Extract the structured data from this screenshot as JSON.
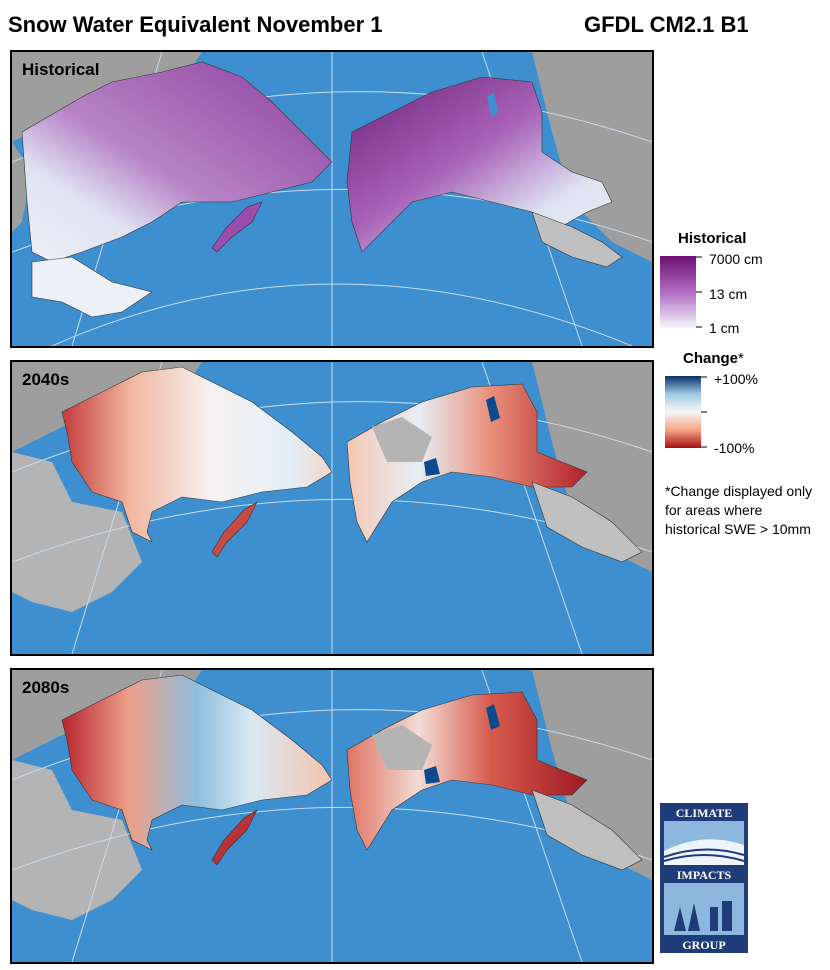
{
  "header": {
    "title": "Snow Water Equivalent November 1",
    "model": "GFDL CM2.1 B1"
  },
  "panels": [
    {
      "label": "Historical",
      "mode": "historical"
    },
    {
      "label": "2040s",
      "mode": "change"
    },
    {
      "label": "2080s",
      "mode": "change"
    }
  ],
  "legend_historical": {
    "title": "Historical",
    "ticks": [
      "7000 cm",
      "13 cm",
      "1 cm"
    ],
    "colors": [
      "#6e0f73",
      "#b06cc0",
      "#f4f6fb"
    ]
  },
  "legend_change": {
    "title": "Change",
    "title_mark": "*",
    "ticks": [
      "+100%",
      "-100%"
    ],
    "colors": [
      "#08306b",
      "#9ecae1",
      "#f7f7f7",
      "#f4a582",
      "#a50f15"
    ]
  },
  "note": "*Change displayed only for areas where historical SWE > 10mm",
  "logo": {
    "lines": [
      "CLIMATE",
      "IMPACTS",
      "GROUP"
    ],
    "colors": {
      "frame": "#1f3c7a",
      "light": "#8db7dd"
    }
  },
  "map_colors": {
    "ocean": "#3e8fcf",
    "land": "#9e9e9e",
    "nodata": "#c0c0c0",
    "coast": "#333333",
    "graticule": "#c7dced"
  }
}
